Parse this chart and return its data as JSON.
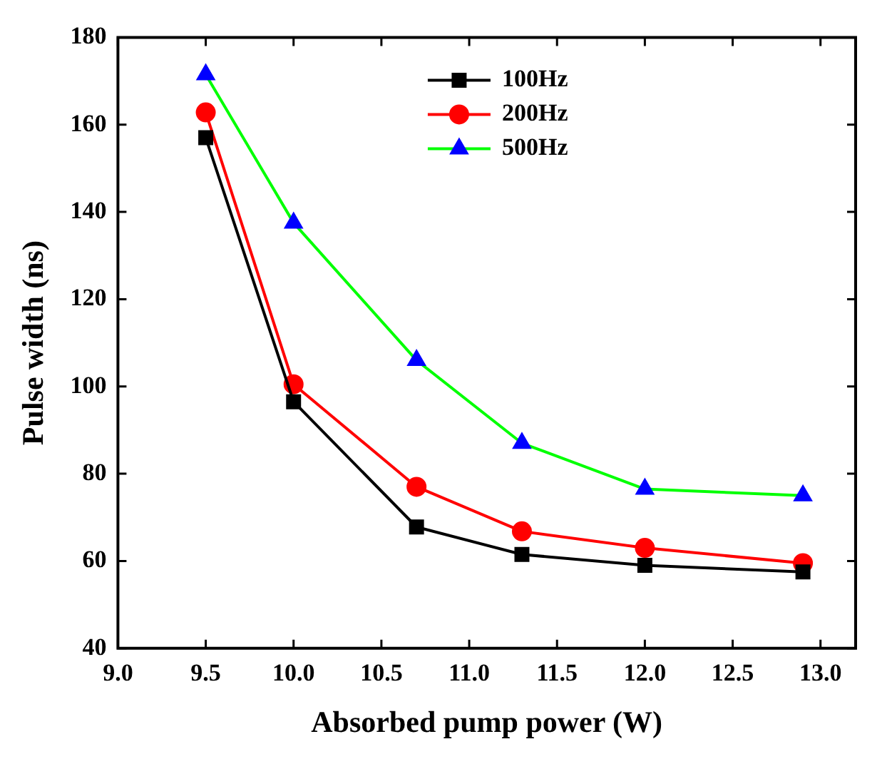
{
  "chart_data": {
    "type": "line",
    "xlabel": "Absorbed pump power (W)",
    "ylabel": "Pulse width (ns)",
    "x": [
      9.5,
      10.0,
      10.7,
      11.3,
      12.0,
      12.9
    ],
    "xlim": [
      9.0,
      13.2
    ],
    "xticks": [
      {
        "value": 9.0,
        "label": "9.0"
      },
      {
        "value": 9.5,
        "label": "9.5"
      },
      {
        "value": 10.0,
        "label": "10.0"
      },
      {
        "value": 10.5,
        "label": "10.5"
      },
      {
        "value": 11.0,
        "label": "11.0"
      },
      {
        "value": 11.5,
        "label": "11.5"
      },
      {
        "value": 12.0,
        "label": "12.0"
      },
      {
        "value": 12.5,
        "label": "12.5"
      },
      {
        "value": 13.0,
        "label": "13.0"
      }
    ],
    "ylim": [
      40,
      180
    ],
    "yticks": [
      40,
      60,
      80,
      100,
      120,
      140,
      160,
      180
    ],
    "grid": false,
    "legend": "top right",
    "line_style": "solid",
    "series": [
      {
        "name": "100Hz",
        "color": "#000000",
        "marker": "square",
        "values": [
          157,
          96.5,
          67.8,
          61.5,
          59,
          57.5
        ]
      },
      {
        "name": "200Hz",
        "color": "#ff0000",
        "marker": "circle",
        "values": [
          162.8,
          100.5,
          77,
          66.8,
          63,
          59.5
        ]
      },
      {
        "name": "500Hz",
        "color": "#00ff00",
        "colors": [
          "#0000ff",
          "#0000ff",
          "#0000ff",
          "#0000ff",
          "#0000ff",
          "#0000ff"
        ],
        "marker": "triangle",
        "values": [
          171.5,
          137.5,
          106,
          87,
          76.5,
          75
        ]
      }
    ]
  }
}
